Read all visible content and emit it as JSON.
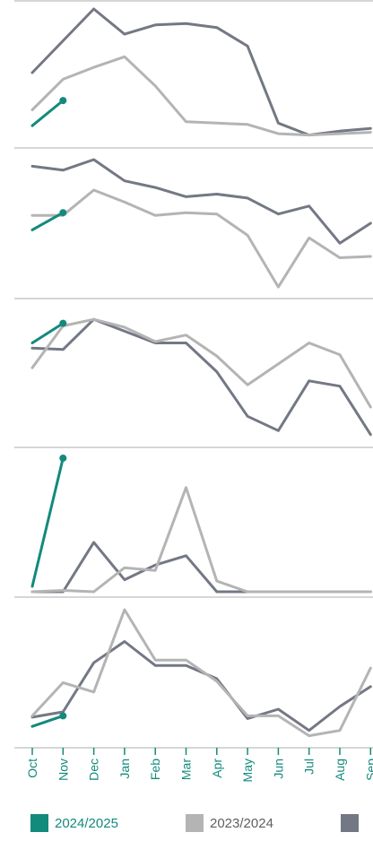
{
  "chart_data": {
    "type": "line",
    "layout": "small-multiples-stacked",
    "categories": [
      "Oct",
      "Nov",
      "Dec",
      "Jan",
      "Feb",
      "Mar",
      "Apr",
      "May",
      "Jun",
      "Jul",
      "Aug",
      "Sep"
    ],
    "legend": [
      {
        "name": "2024/2025",
        "color": "#138a7c"
      },
      {
        "name": "2023/2024",
        "color": "#b4b4b4"
      },
      {
        "name": "",
        "color": "#737884"
      }
    ],
    "panels": [
      {
        "ylim": [
          0,
          100
        ],
        "series": [
          {
            "name": "2024/2025",
            "values": [
              12,
              31,
              null,
              null,
              null,
              null,
              null,
              null,
              null,
              null,
              null,
              null
            ]
          },
          {
            "name": "2023/2024",
            "values": [
              24,
              47,
              56,
              64,
              42,
              15,
              14,
              13,
              6,
              5,
              6,
              7
            ]
          },
          {
            "name": "",
            "values": [
              52,
              76,
              100,
              81,
              88,
              89,
              86,
              72,
              14,
              5,
              8,
              10
            ]
          }
        ]
      },
      {
        "ylim": [
          0,
          100
        ],
        "series": [
          {
            "name": "2024/2025",
            "values": [
              47,
              60,
              null,
              null,
              null,
              null,
              null,
              null,
              null,
              null,
              null,
              null
            ]
          },
          {
            "name": "2023/2024",
            "values": [
              58,
              58,
              77,
              68,
              58,
              60,
              59,
              43,
              4,
              41,
              26,
              27
            ]
          },
          {
            "name": "",
            "values": [
              95,
              92,
              100,
              84,
              79,
              72,
              74,
              71,
              59,
              65,
              37,
              52
            ]
          }
        ]
      },
      {
        "ylim": [
          0,
          100
        ],
        "series": [
          {
            "name": "2024/2025",
            "values": [
              75,
              90,
              null,
              null,
              null,
              null,
              null,
              null,
              null,
              null,
              null,
              null
            ]
          },
          {
            "name": "2023/2024",
            "values": [
              56,
              88,
              93,
              87,
              76,
              81,
              65,
              43,
              59,
              75,
              66,
              26
            ]
          },
          {
            "name": "",
            "values": [
              71,
              70,
              93,
              84,
              75,
              75,
              53,
              19,
              8,
              46,
              42,
              5
            ]
          }
        ]
      },
      {
        "ylim": [
          0,
          100
        ],
        "series": [
          {
            "name": "2024/2025",
            "values": [
              4,
              100,
              null,
              null,
              null,
              null,
              null,
              null,
              null,
              null,
              null,
              null
            ]
          },
          {
            "name": "2023/2024",
            "values": [
              0,
              1,
              0,
              18,
              16,
              78,
              8,
              0,
              0,
              0,
              0,
              0
            ]
          },
          {
            "name": "",
            "values": [
              0,
              0,
              37,
              9,
              20,
              27,
              0,
              0,
              0,
              0,
              0,
              0
            ]
          }
        ]
      },
      {
        "ylim": [
          0,
          100
        ],
        "series": [
          {
            "name": "2024/2025",
            "values": [
              12,
              20,
              null,
              null,
              null,
              null,
              null,
              null,
              null,
              null,
              null,
              null
            ]
          },
          {
            "name": "2023/2024",
            "values": [
              20,
              45,
              38,
              100,
              62,
              62,
              46,
              20,
              20,
              5,
              9,
              56
            ]
          },
          {
            "name": "",
            "values": [
              19,
              23,
              60,
              76,
              58,
              58,
              48,
              18,
              25,
              9,
              27,
              42
            ]
          }
        ]
      }
    ]
  }
}
